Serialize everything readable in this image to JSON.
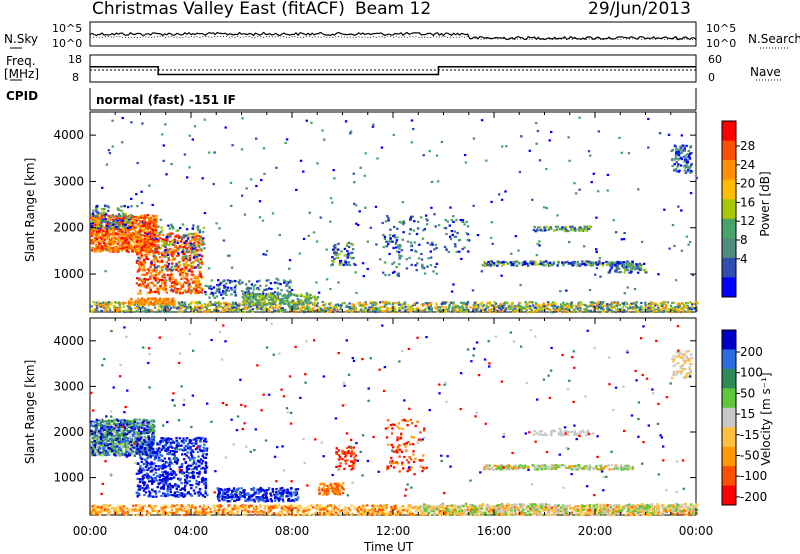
{
  "header": {
    "station": "Christmas Valley East (fitACF)",
    "beam": "Beam 12",
    "date": "29/Jun/2013"
  },
  "panels": {
    "nsky_label": "N.Sky",
    "nsearch_label": "N.Search",
    "nsky_ticks": [
      "10^5",
      "10^0"
    ],
    "nsearch_ticks": [
      "10^5",
      "10^0"
    ],
    "freq_label_1": "Freq.",
    "freq_label_2": "[MHz]",
    "freq_ticks": [
      "18",
      "8"
    ],
    "nave_label": "Nave",
    "nave_ticks": [
      "60",
      "0"
    ],
    "cpid_label": "CPID",
    "cpid_value": "normal (fast) -151 IF"
  },
  "chart_data": [
    {
      "type": "heatmap",
      "name": "power",
      "xlabel": "",
      "ylabel": "Slant Range [km]",
      "y_ticks": [
        "4000",
        "3000",
        "2000",
        "1000"
      ],
      "xlim": [
        0,
        24
      ],
      "ylim": [
        180,
        4500
      ],
      "colorbar_label": "Power [dB]",
      "colorbar_ticks": [
        "28",
        "24",
        "20",
        "16",
        "12",
        "8",
        "4"
      ],
      "colorbar_colors": [
        "#ff0000",
        "#ff4f00",
        "#ff9000",
        "#ffbf00",
        "#a8c800",
        "#47a56a",
        "#4f8c7d",
        "#2e4fb0",
        "#0000ff"
      ]
    },
    {
      "type": "heatmap",
      "name": "velocity",
      "xlabel": "Time UT",
      "ylabel": "Slant Range [km]",
      "x_ticks": [
        "00:00",
        "04:00",
        "08:00",
        "12:00",
        "16:00",
        "20:00",
        "00:00"
      ],
      "y_ticks": [
        "4000",
        "3000",
        "2000",
        "1000"
      ],
      "xlim": [
        0,
        24
      ],
      "ylim": [
        180,
        4500
      ],
      "colorbar_label": "Velocity [m s⁻¹]",
      "colorbar_ticks": [
        "200",
        "100",
        "50",
        "15",
        "-15",
        "-50",
        "-100",
        "-200"
      ],
      "colorbar_colors": [
        "#0000c8",
        "#2a6ee0",
        "#2e8b57",
        "#5fc83a",
        "#c8c8c8",
        "#ffc040",
        "#ff9a00",
        "#ff5000",
        "#ff0000"
      ]
    }
  ]
}
